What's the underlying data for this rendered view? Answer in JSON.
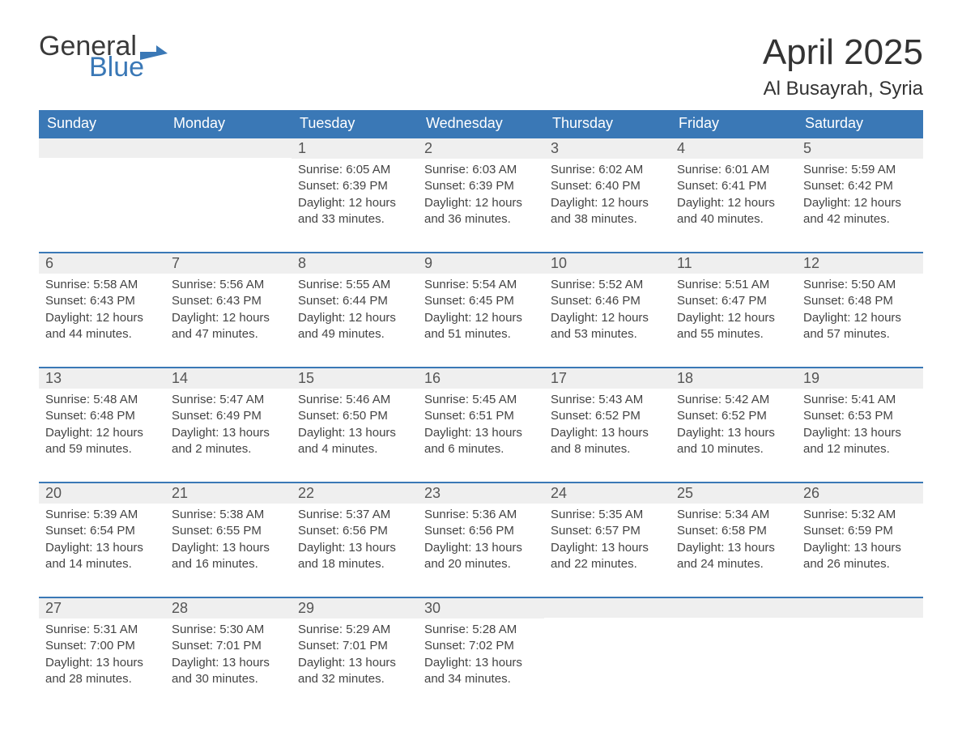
{
  "logo": {
    "text1": "General",
    "text2": "Blue"
  },
  "title": "April 2025",
  "location": "Al Busayrah, Syria",
  "colors": {
    "header_bg": "#3a78b6",
    "header_text": "#ffffff",
    "daynum_bg": "#efefef",
    "border": "#3a78b6",
    "text": "#333333",
    "logo_blue": "#3a78b6"
  },
  "day_headers": [
    "Sunday",
    "Monday",
    "Tuesday",
    "Wednesday",
    "Thursday",
    "Friday",
    "Saturday"
  ],
  "weeks": [
    [
      {
        "n": "",
        "sunrise": "",
        "sunset": "",
        "daylight": ""
      },
      {
        "n": "",
        "sunrise": "",
        "sunset": "",
        "daylight": ""
      },
      {
        "n": "1",
        "sunrise": "Sunrise: 6:05 AM",
        "sunset": "Sunset: 6:39 PM",
        "daylight": "Daylight: 12 hours and 33 minutes."
      },
      {
        "n": "2",
        "sunrise": "Sunrise: 6:03 AM",
        "sunset": "Sunset: 6:39 PM",
        "daylight": "Daylight: 12 hours and 36 minutes."
      },
      {
        "n": "3",
        "sunrise": "Sunrise: 6:02 AM",
        "sunset": "Sunset: 6:40 PM",
        "daylight": "Daylight: 12 hours and 38 minutes."
      },
      {
        "n": "4",
        "sunrise": "Sunrise: 6:01 AM",
        "sunset": "Sunset: 6:41 PM",
        "daylight": "Daylight: 12 hours and 40 minutes."
      },
      {
        "n": "5",
        "sunrise": "Sunrise: 5:59 AM",
        "sunset": "Sunset: 6:42 PM",
        "daylight": "Daylight: 12 hours and 42 minutes."
      }
    ],
    [
      {
        "n": "6",
        "sunrise": "Sunrise: 5:58 AM",
        "sunset": "Sunset: 6:43 PM",
        "daylight": "Daylight: 12 hours and 44 minutes."
      },
      {
        "n": "7",
        "sunrise": "Sunrise: 5:56 AM",
        "sunset": "Sunset: 6:43 PM",
        "daylight": "Daylight: 12 hours and 47 minutes."
      },
      {
        "n": "8",
        "sunrise": "Sunrise: 5:55 AM",
        "sunset": "Sunset: 6:44 PM",
        "daylight": "Daylight: 12 hours and 49 minutes."
      },
      {
        "n": "9",
        "sunrise": "Sunrise: 5:54 AM",
        "sunset": "Sunset: 6:45 PM",
        "daylight": "Daylight: 12 hours and 51 minutes."
      },
      {
        "n": "10",
        "sunrise": "Sunrise: 5:52 AM",
        "sunset": "Sunset: 6:46 PM",
        "daylight": "Daylight: 12 hours and 53 minutes."
      },
      {
        "n": "11",
        "sunrise": "Sunrise: 5:51 AM",
        "sunset": "Sunset: 6:47 PM",
        "daylight": "Daylight: 12 hours and 55 minutes."
      },
      {
        "n": "12",
        "sunrise": "Sunrise: 5:50 AM",
        "sunset": "Sunset: 6:48 PM",
        "daylight": "Daylight: 12 hours and 57 minutes."
      }
    ],
    [
      {
        "n": "13",
        "sunrise": "Sunrise: 5:48 AM",
        "sunset": "Sunset: 6:48 PM",
        "daylight": "Daylight: 12 hours and 59 minutes."
      },
      {
        "n": "14",
        "sunrise": "Sunrise: 5:47 AM",
        "sunset": "Sunset: 6:49 PM",
        "daylight": "Daylight: 13 hours and 2 minutes."
      },
      {
        "n": "15",
        "sunrise": "Sunrise: 5:46 AM",
        "sunset": "Sunset: 6:50 PM",
        "daylight": "Daylight: 13 hours and 4 minutes."
      },
      {
        "n": "16",
        "sunrise": "Sunrise: 5:45 AM",
        "sunset": "Sunset: 6:51 PM",
        "daylight": "Daylight: 13 hours and 6 minutes."
      },
      {
        "n": "17",
        "sunrise": "Sunrise: 5:43 AM",
        "sunset": "Sunset: 6:52 PM",
        "daylight": "Daylight: 13 hours and 8 minutes."
      },
      {
        "n": "18",
        "sunrise": "Sunrise: 5:42 AM",
        "sunset": "Sunset: 6:52 PM",
        "daylight": "Daylight: 13 hours and 10 minutes."
      },
      {
        "n": "19",
        "sunrise": "Sunrise: 5:41 AM",
        "sunset": "Sunset: 6:53 PM",
        "daylight": "Daylight: 13 hours and 12 minutes."
      }
    ],
    [
      {
        "n": "20",
        "sunrise": "Sunrise: 5:39 AM",
        "sunset": "Sunset: 6:54 PM",
        "daylight": "Daylight: 13 hours and 14 minutes."
      },
      {
        "n": "21",
        "sunrise": "Sunrise: 5:38 AM",
        "sunset": "Sunset: 6:55 PM",
        "daylight": "Daylight: 13 hours and 16 minutes."
      },
      {
        "n": "22",
        "sunrise": "Sunrise: 5:37 AM",
        "sunset": "Sunset: 6:56 PM",
        "daylight": "Daylight: 13 hours and 18 minutes."
      },
      {
        "n": "23",
        "sunrise": "Sunrise: 5:36 AM",
        "sunset": "Sunset: 6:56 PM",
        "daylight": "Daylight: 13 hours and 20 minutes."
      },
      {
        "n": "24",
        "sunrise": "Sunrise: 5:35 AM",
        "sunset": "Sunset: 6:57 PM",
        "daylight": "Daylight: 13 hours and 22 minutes."
      },
      {
        "n": "25",
        "sunrise": "Sunrise: 5:34 AM",
        "sunset": "Sunset: 6:58 PM",
        "daylight": "Daylight: 13 hours and 24 minutes."
      },
      {
        "n": "26",
        "sunrise": "Sunrise: 5:32 AM",
        "sunset": "Sunset: 6:59 PM",
        "daylight": "Daylight: 13 hours and 26 minutes."
      }
    ],
    [
      {
        "n": "27",
        "sunrise": "Sunrise: 5:31 AM",
        "sunset": "Sunset: 7:00 PM",
        "daylight": "Daylight: 13 hours and 28 minutes."
      },
      {
        "n": "28",
        "sunrise": "Sunrise: 5:30 AM",
        "sunset": "Sunset: 7:01 PM",
        "daylight": "Daylight: 13 hours and 30 minutes."
      },
      {
        "n": "29",
        "sunrise": "Sunrise: 5:29 AM",
        "sunset": "Sunset: 7:01 PM",
        "daylight": "Daylight: 13 hours and 32 minutes."
      },
      {
        "n": "30",
        "sunrise": "Sunrise: 5:28 AM",
        "sunset": "Sunset: 7:02 PM",
        "daylight": "Daylight: 13 hours and 34 minutes."
      },
      {
        "n": "",
        "sunrise": "",
        "sunset": "",
        "daylight": ""
      },
      {
        "n": "",
        "sunrise": "",
        "sunset": "",
        "daylight": ""
      },
      {
        "n": "",
        "sunrise": "",
        "sunset": "",
        "daylight": ""
      }
    ]
  ]
}
